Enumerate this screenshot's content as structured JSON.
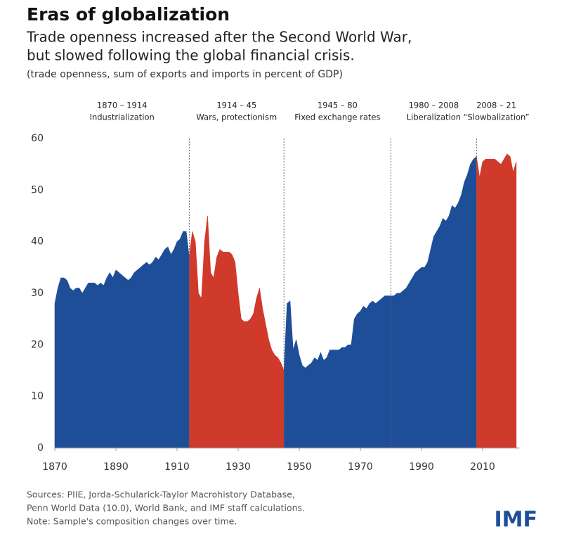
{
  "chart_data": {
    "type": "area",
    "title": "Eras of globalization",
    "subtitle": [
      "Trade openness increased after the Second World War,",
      "but slowed following the global financial crisis."
    ],
    "axis_note": "(trade openness, sum of exports and imports in percent of GDP)",
    "eras": [
      {
        "period": "1870 – 1914",
        "name": "Industrialization",
        "start": 1870,
        "end": 1914,
        "color": "#1f4e99"
      },
      {
        "period": "1914 – 45",
        "name": "Wars, protectionism",
        "start": 1914,
        "end": 1945,
        "color": "#cf3a2b"
      },
      {
        "period": "1945 – 80",
        "name": "Fixed exchange rates",
        "start": 1945,
        "end": 1980,
        "color": "#1f4e99"
      },
      {
        "period": "1980 – 2008",
        "name": "Liberalization",
        "start": 1980,
        "end": 2008,
        "color": "#1f4e99"
      },
      {
        "period": "2008 – 21",
        "name": "“Slowbalization”",
        "start": 2008,
        "end": 2021,
        "color": "#cf3a2b"
      }
    ],
    "x": [
      1870,
      1871,
      1872,
      1873,
      1874,
      1875,
      1876,
      1877,
      1878,
      1879,
      1880,
      1881,
      1882,
      1883,
      1884,
      1885,
      1886,
      1887,
      1888,
      1889,
      1890,
      1891,
      1892,
      1893,
      1894,
      1895,
      1896,
      1897,
      1898,
      1899,
      1900,
      1901,
      1902,
      1903,
      1904,
      1905,
      1906,
      1907,
      1908,
      1909,
      1910,
      1911,
      1912,
      1913,
      1914,
      1915,
      1916,
      1917,
      1918,
      1919,
      1920,
      1921,
      1922,
      1923,
      1924,
      1925,
      1926,
      1927,
      1928,
      1929,
      1930,
      1931,
      1932,
      1933,
      1934,
      1935,
      1936,
      1937,
      1938,
      1939,
      1940,
      1941,
      1942,
      1943,
      1944,
      1945,
      1946,
      1947,
      1948,
      1949,
      1950,
      1951,
      1952,
      1953,
      1954,
      1955,
      1956,
      1957,
      1958,
      1959,
      1960,
      1961,
      1962,
      1963,
      1964,
      1965,
      1966,
      1967,
      1968,
      1969,
      1970,
      1971,
      1972,
      1973,
      1974,
      1975,
      1976,
      1977,
      1978,
      1979,
      1980,
      1981,
      1982,
      1983,
      1984,
      1985,
      1986,
      1987,
      1988,
      1989,
      1990,
      1991,
      1992,
      1993,
      1994,
      1995,
      1996,
      1997,
      1998,
      1999,
      2000,
      2001,
      2002,
      2003,
      2004,
      2005,
      2006,
      2007,
      2008,
      2009,
      2010,
      2011,
      2012,
      2013,
      2014,
      2015,
      2016,
      2017,
      2018,
      2019,
      2020,
      2021
    ],
    "values": [
      28,
      31,
      33,
      33,
      32.5,
      31,
      30.5,
      31,
      31,
      30,
      31,
      32,
      32,
      32,
      31.5,
      32,
      31.5,
      33,
      34,
      33,
      34.5,
      34,
      33.5,
      33,
      32.5,
      33,
      34,
      34.5,
      35,
      35.5,
      36,
      35.5,
      36,
      37,
      36.5,
      37.5,
      38.5,
      39,
      37.5,
      38.5,
      40,
      40.5,
      42,
      42,
      37,
      42,
      40,
      30,
      29,
      40,
      45,
      34,
      33,
      37,
      38.5,
      38,
      38,
      38,
      37.5,
      36,
      30,
      25,
      24.5,
      24.5,
      25,
      26,
      29,
      31,
      27,
      24,
      21,
      19,
      18,
      17.5,
      16.5,
      15,
      28,
      28.5,
      19,
      21,
      18,
      16,
      15.5,
      16,
      16.5,
      17.5,
      17,
      18.5,
      17,
      17.5,
      19,
      19,
      19,
      19,
      19.5,
      19.5,
      20,
      20,
      25,
      26,
      26.5,
      27.5,
      27,
      28,
      28.5,
      28,
      28.5,
      29,
      29.5,
      29.5,
      29.5,
      29.5,
      30,
      30,
      30.5,
      31,
      32,
      33,
      34,
      34.5,
      35,
      35,
      36,
      38.5,
      41,
      42,
      43,
      44.5,
      44,
      45,
      47,
      46.5,
      47.5,
      49,
      51.5,
      53,
      55,
      56,
      56.5,
      52.5,
      55.5,
      56,
      56,
      56,
      56,
      55.5,
      55,
      56,
      57,
      56.5,
      53.5,
      55.5
    ],
    "xlim": [
      1870,
      2022
    ],
    "ylim": [
      0,
      60
    ],
    "xticks": [
      1870,
      1890,
      1910,
      1930,
      1950,
      1970,
      1990,
      2010
    ],
    "yticks": [
      0,
      10,
      20,
      30,
      40,
      50,
      60
    ],
    "label_colors": {
      "blue": "#1f4e99",
      "red": "#cf3a2b"
    },
    "sources": [
      "Sources: PIIE, Jorda-Schularick-Taylor Macrohistory Database,",
      "Penn World Data (10.0), World Bank, and IMF staff calculations.",
      "Note: Sample's composition changes over time."
    ],
    "logo": "IMF"
  }
}
